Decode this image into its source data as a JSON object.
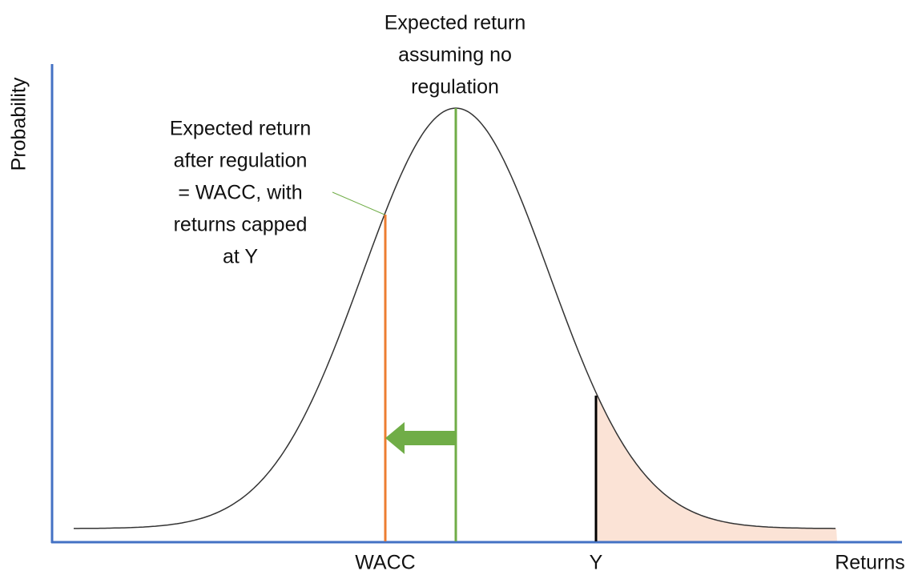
{
  "diagram": {
    "y_axis_label": "Probability",
    "x_axis_label": "Returns",
    "markers": [
      "WACC",
      "Y"
    ],
    "annotations": [
      {
        "lines": [
          "Expected return",
          "assuming no",
          "regulation"
        ]
      },
      {
        "lines": [
          "Expected return",
          "after regulation",
          "= WACC, with",
          "returns capped",
          "at Y"
        ]
      }
    ]
  }
}
